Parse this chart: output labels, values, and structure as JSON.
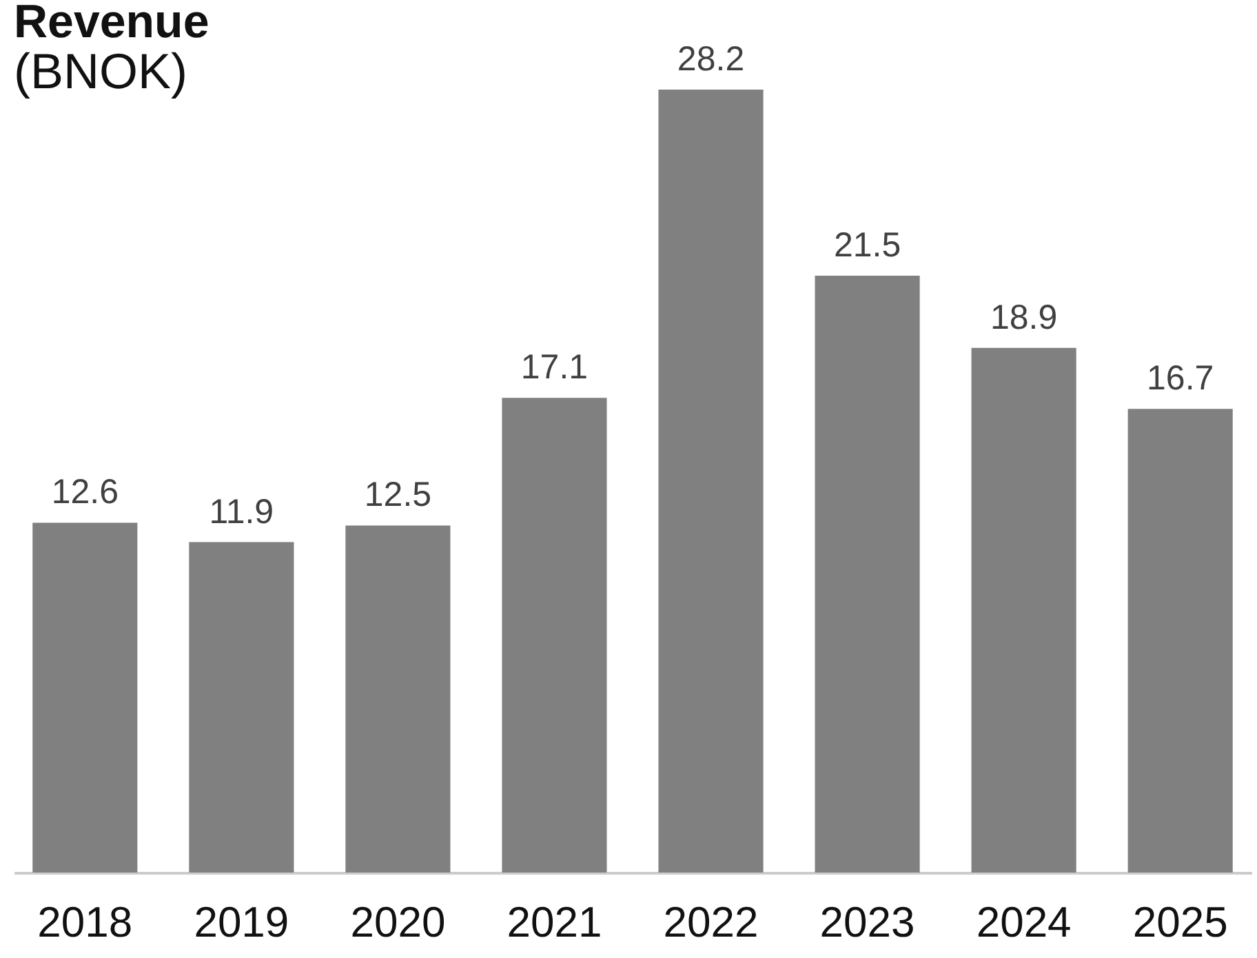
{
  "chart_data": {
    "type": "bar",
    "title": "Revenue",
    "subtitle": "(BNOK)",
    "categories": [
      "2018",
      "2019",
      "2020",
      "2021",
      "2022",
      "2023",
      "2024",
      "2025"
    ],
    "values": [
      12.6,
      11.9,
      12.5,
      17.1,
      28.2,
      21.5,
      18.9,
      16.7
    ],
    "color": "#808080",
    "data_labels": true,
    "grid": false
  }
}
